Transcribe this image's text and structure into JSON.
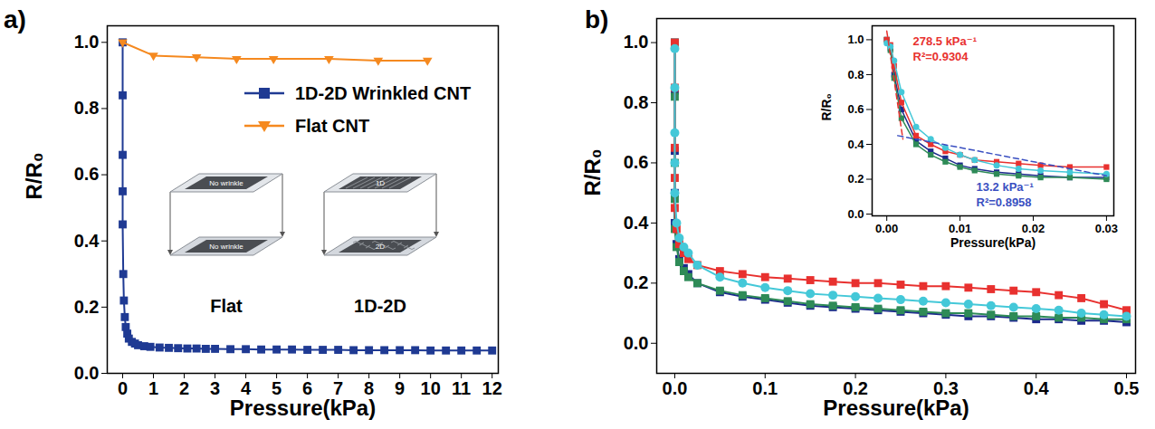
{
  "chart_data": [
    {
      "type": "line",
      "panel_label": "a)",
      "xlabel": "Pressure(kPa)",
      "ylabel": "R/R₀",
      "xlim": [
        -0.5,
        12.2
      ],
      "xticks": [
        0,
        1,
        2,
        3,
        4,
        5,
        6,
        7,
        8,
        9,
        10,
        11,
        12
      ],
      "ylim": [
        0,
        1.05
      ],
      "yticks": [
        {
          "value": 0,
          "label": "0.0"
        },
        {
          "value": 0.2,
          "label": "0.2"
        },
        {
          "value": 0.4,
          "label": "0.4"
        },
        {
          "value": 0.6,
          "label": "0.6"
        },
        {
          "value": 0.8,
          "label": "0.8"
        },
        {
          "value": 1.0,
          "label": "1.0"
        }
      ],
      "legend": "upper right",
      "annotations": [
        {
          "text": "Flat",
          "layers": [
            "No wrinkle",
            "No wrinkle"
          ]
        },
        {
          "text": "1D-2D",
          "layers": [
            "1D",
            "2D"
          ]
        }
      ],
      "series": [
        {
          "name": "1D-2D Wrinkled CNT",
          "color": "#1f3a93",
          "marker": "square",
          "x": [
            0,
            0,
            0,
            0,
            0,
            0.02,
            0.04,
            0.07,
            0.1,
            0.15,
            0.2,
            0.3,
            0.4,
            0.5,
            0.7,
            0.9,
            1.2,
            1.5,
            1.8,
            2.1,
            2.4,
            2.7,
            3,
            3.5,
            4,
            4.5,
            5,
            5.5,
            6,
            6.5,
            7,
            7.5,
            8,
            8.5,
            9,
            9.5,
            10,
            10.5,
            11,
            11.5,
            12
          ],
          "values": [
            1.0,
            0.84,
            0.66,
            0.55,
            0.45,
            0.3,
            0.22,
            0.17,
            0.14,
            0.12,
            0.105,
            0.095,
            0.09,
            0.085,
            0.082,
            0.08,
            0.078,
            0.077,
            0.076,
            0.075,
            0.075,
            0.074,
            0.074,
            0.073,
            0.073,
            0.072,
            0.072,
            0.072,
            0.071,
            0.071,
            0.071,
            0.07,
            0.07,
            0.07,
            0.07,
            0.07,
            0.069,
            0.069,
            0.069,
            0.069,
            0.069
          ]
        },
        {
          "name": "Flat CNT",
          "color": "#f5891f",
          "marker": "triangle-down",
          "x": [
            0,
            1,
            2.4,
            3.7,
            4.9,
            6.7,
            8.3,
            9.9
          ],
          "values": [
            1.0,
            0.96,
            0.955,
            0.95,
            0.95,
            0.95,
            0.945,
            0.945
          ]
        }
      ]
    },
    {
      "type": "line",
      "panel_label": "b)",
      "xlabel": "Pressure(kPa)",
      "ylabel": "R/R₀",
      "xlim": [
        -0.02,
        0.51
      ],
      "xticks": [
        {
          "value": 0,
          "label": "0.0"
        },
        {
          "value": 0.1,
          "label": "0.1"
        },
        {
          "value": 0.2,
          "label": "0.2"
        },
        {
          "value": 0.3,
          "label": "0.3"
        },
        {
          "value": 0.4,
          "label": "0.4"
        },
        {
          "value": 0.5,
          "label": "0.5"
        }
      ],
      "ylim": [
        -0.1,
        1.08
      ],
      "yticks": [
        {
          "value": 0,
          "label": "0.0"
        },
        {
          "value": 0.2,
          "label": "0.2"
        },
        {
          "value": 0.4,
          "label": "0.4"
        },
        {
          "value": 0.6,
          "label": "0.6"
        },
        {
          "value": 0.8,
          "label": "0.8"
        },
        {
          "value": 1.0,
          "label": "1.0"
        }
      ],
      "x": [
        0,
        0,
        0,
        0,
        0,
        0.002,
        0.005,
        0.01,
        0.015,
        0.025,
        0.05,
        0.075,
        0.1,
        0.125,
        0.15,
        0.175,
        0.2,
        0.225,
        0.25,
        0.275,
        0.3,
        0.325,
        0.35,
        0.375,
        0.4,
        0.425,
        0.45,
        0.475,
        0.5
      ],
      "series": [
        {
          "color": "#1c2a8c",
          "marker": "square",
          "values": [
            1.0,
            0.84,
            0.64,
            0.5,
            0.4,
            0.33,
            0.28,
            0.25,
            0.23,
            0.2,
            0.17,
            0.155,
            0.145,
            0.135,
            0.125,
            0.12,
            0.115,
            0.11,
            0.105,
            0.1,
            0.095,
            0.09,
            0.09,
            0.085,
            0.08,
            0.08,
            0.075,
            0.075,
            0.07
          ]
        },
        {
          "color": "#2e8b57",
          "marker": "square",
          "values": [
            1.0,
            0.82,
            0.6,
            0.48,
            0.38,
            0.32,
            0.27,
            0.24,
            0.22,
            0.2,
            0.175,
            0.16,
            0.15,
            0.14,
            0.13,
            0.125,
            0.12,
            0.115,
            0.11,
            0.105,
            0.1,
            0.1,
            0.095,
            0.09,
            0.09,
            0.085,
            0.085,
            0.08,
            0.08
          ]
        },
        {
          "color": "#e8312f",
          "marker": "square",
          "values": [
            1.0,
            0.85,
            0.65,
            0.55,
            0.45,
            0.38,
            0.33,
            0.3,
            0.28,
            0.26,
            0.24,
            0.23,
            0.22,
            0.215,
            0.21,
            0.205,
            0.2,
            0.2,
            0.195,
            0.19,
            0.19,
            0.185,
            0.18,
            0.175,
            0.17,
            0.16,
            0.15,
            0.13,
            0.11
          ]
        },
        {
          "color": "#44c8d8",
          "marker": "circle",
          "values": [
            0.98,
            0.85,
            0.7,
            0.6,
            0.5,
            0.4,
            0.35,
            0.32,
            0.3,
            0.26,
            0.22,
            0.2,
            0.185,
            0.175,
            0.165,
            0.16,
            0.155,
            0.15,
            0.145,
            0.14,
            0.135,
            0.13,
            0.125,
            0.12,
            0.115,
            0.11,
            0.1,
            0.095,
            0.09
          ]
        }
      ]
    },
    {
      "type": "line",
      "xlabel": "Pressure(kPa)",
      "ylabel": "R/R₀",
      "xlim": [
        -0.002,
        0.031
      ],
      "xticks": [
        {
          "value": 0,
          "label": "0.00"
        },
        {
          "value": 0.01,
          "label": "0.01"
        },
        {
          "value": 0.02,
          "label": "0.02"
        },
        {
          "value": 0.03,
          "label": "0.03"
        }
      ],
      "ylim": [
        -0.01,
        1.08
      ],
      "yticks": [
        {
          "value": 0,
          "label": "0.0"
        },
        {
          "value": 0.2,
          "label": "0.2"
        },
        {
          "value": 0.4,
          "label": "0.4"
        },
        {
          "value": 0.6,
          "label": "0.6"
        },
        {
          "value": 0.8,
          "label": "0.8"
        },
        {
          "value": 1.0,
          "label": "1.0"
        }
      ],
      "x": [
        0,
        0.0005,
        0.001,
        0.002,
        0.004,
        0.006,
        0.008,
        0.01,
        0.012,
        0.015,
        0.018,
        0.021,
        0.025,
        0.03
      ],
      "annotations": [
        {
          "text": "278.5 kPa⁻¹",
          "color": "#e8312f"
        },
        {
          "text": "R²=0.9304",
          "color": "#e8312f"
        },
        {
          "text": "13.2 kPa⁻¹",
          "color": "#3a4fc1"
        },
        {
          "text": "R²=0.8958",
          "color": "#3a4fc1"
        }
      ],
      "series": [
        {
          "color": "#1c2a8c",
          "marker": "square",
          "values": [
            1.0,
            0.95,
            0.8,
            0.6,
            0.42,
            0.36,
            0.32,
            0.28,
            0.26,
            0.24,
            0.23,
            0.22,
            0.21,
            0.21
          ]
        },
        {
          "color": "#2e8b57",
          "marker": "square",
          "values": [
            1.0,
            0.94,
            0.78,
            0.55,
            0.4,
            0.34,
            0.3,
            0.27,
            0.25,
            0.23,
            0.22,
            0.21,
            0.21,
            0.2
          ]
        },
        {
          "color": "#e8312f",
          "marker": "square",
          "values": [
            1.0,
            0.97,
            0.85,
            0.64,
            0.45,
            0.4,
            0.36,
            0.34,
            0.31,
            0.3,
            0.29,
            0.28,
            0.27,
            0.27
          ]
        },
        {
          "color": "#44c8d8",
          "marker": "circle",
          "values": [
            0.98,
            0.96,
            0.88,
            0.7,
            0.5,
            0.43,
            0.38,
            0.34,
            0.31,
            0.28,
            0.26,
            0.25,
            0.24,
            0.23
          ]
        },
        {
          "color": "#e8312f",
          "line_style": "dashed",
          "x": [
            0,
            0.0022
          ],
          "values": [
            1.05,
            0.43
          ]
        },
        {
          "color": "#3a4fc1",
          "line_style": "dashed",
          "x": [
            0.0015,
            0.03
          ],
          "values": [
            0.45,
            0.22
          ]
        }
      ]
    }
  ]
}
